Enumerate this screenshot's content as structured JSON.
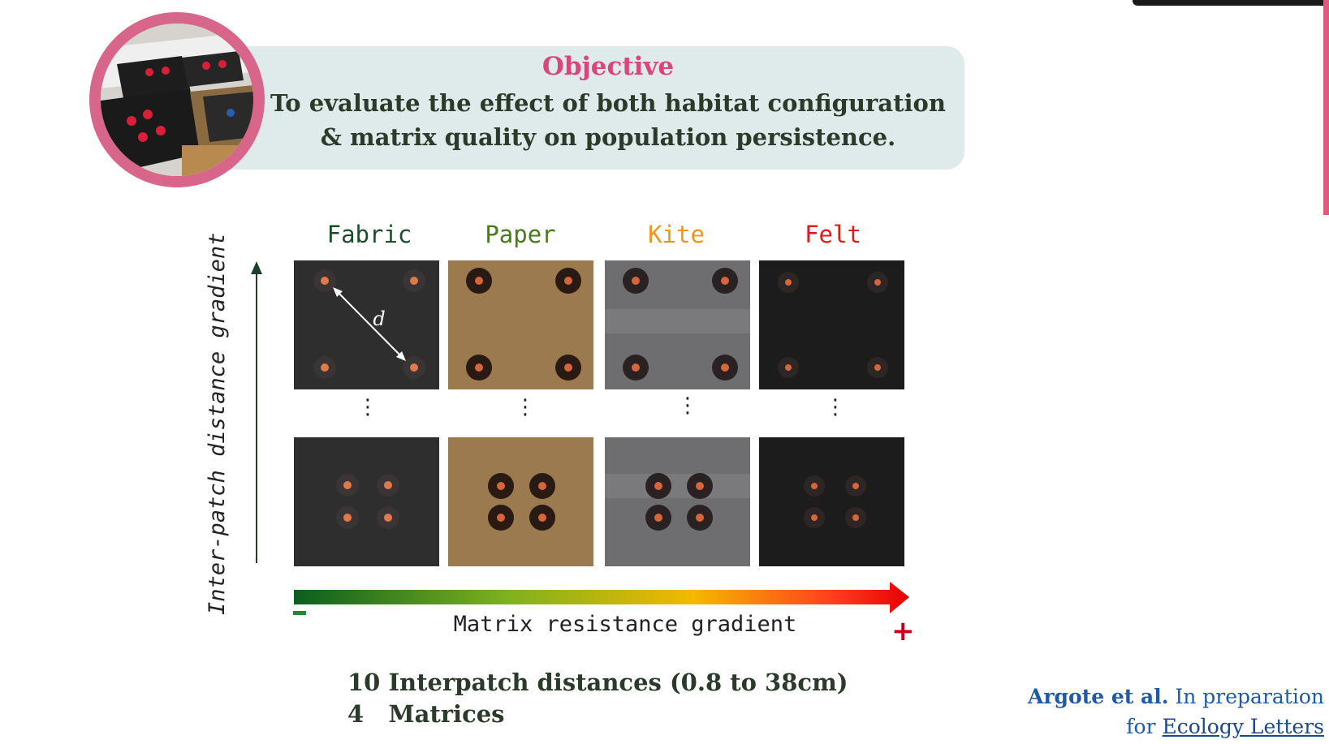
{
  "objective": {
    "title": "Objective",
    "line1": "To evaluate the effect of both habitat configuration",
    "line2": "& matrix quality on population persistence."
  },
  "matrices": [
    {
      "label": "Fabric",
      "color": "#1e4d2b",
      "panel_color": "#2e2e2e"
    },
    {
      "label": "Paper",
      "color": "#4a7a1c",
      "panel_color": "#9a7a4e"
    },
    {
      "label": "Kite",
      "color": "#f0941e",
      "panel_color": "#6e6e70"
    },
    {
      "label": "Felt",
      "color": "#e01b1b",
      "panel_color": "#1c1c1c"
    }
  ],
  "distance_symbol": "d",
  "ellipsis": "⋮",
  "y_axis_label": "Inter-patch distance gradient",
  "x_axis_label": "Matrix resistance gradient",
  "gradient_colors": [
    "#0b5e1e",
    "#7fb21e",
    "#f5b800",
    "#ff3b1f",
    "#e60000"
  ],
  "plus_label": "+",
  "summary": {
    "line1": "10 Interpatch distances (0.8 to 38cm)",
    "line2_num": "4",
    "line2_text": "Matrices"
  },
  "citation": {
    "authors": "Argote et al.",
    "status": "In preparation",
    "prefix": "for",
    "journal": "Ecology Letters"
  }
}
